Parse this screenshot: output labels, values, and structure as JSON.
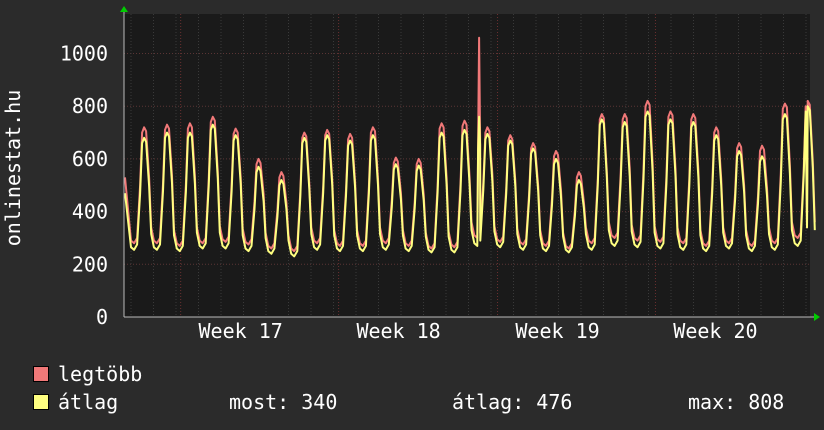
{
  "chart_data": {
    "type": "line",
    "ylabel": "onlinestat.hu",
    "ylim": [
      0,
      1150
    ],
    "yticks": [
      0,
      200,
      400,
      600,
      800,
      1000
    ],
    "xlim": [
      0,
      680
    ],
    "xticks": [
      {
        "label": "Week  17",
        "x": 115
      },
      {
        "label": "Week  18",
        "x": 272
      },
      {
        "label": "Week  19",
        "x": 430
      },
      {
        "label": "Week  20",
        "x": 587
      }
    ],
    "grid": true,
    "series": [
      {
        "name": "legtöbb",
        "color": "#f07878",
        "peaks": [
          720,
          730,
          735,
          760,
          715,
          600,
          550,
          700,
          710,
          695,
          720,
          605,
          600,
          735,
          745,
          720,
          690,
          660,
          630,
          550,
          770,
          770,
          820,
          780,
          770,
          720,
          660,
          650,
          810,
          820
        ],
        "troughs": [
          280,
          270,
          280,
          285,
          275,
          260,
          250,
          280,
          270,
          270,
          280,
          270,
          260,
          265,
          300,
          285,
          275,
          270,
          260,
          280,
          300,
          290,
          285,
          280,
          270,
          280,
          270,
          280,
          300
        ],
        "spike": {
          "x": 352,
          "y": 1060
        }
      },
      {
        "name": "átlag",
        "color": "#ffff80",
        "peaks": [
          680,
          700,
          700,
          730,
          690,
          570,
          520,
          680,
          690,
          670,
          690,
          580,
          575,
          700,
          710,
          695,
          670,
          640,
          600,
          520,
          750,
          740,
          780,
          750,
          740,
          690,
          630,
          610,
          770,
          800
        ],
        "troughs": [
          255,
          250,
          260,
          260,
          250,
          240,
          230,
          255,
          250,
          250,
          255,
          250,
          245,
          245,
          270,
          265,
          255,
          250,
          245,
          255,
          270,
          265,
          260,
          255,
          250,
          260,
          250,
          255,
          270
        ],
        "spike": {
          "x": 352,
          "y": 760
        }
      }
    ],
    "period": 22.75,
    "start": {
      "legtöbb": 530,
      "átlag": 470
    },
    "end": {
      "legtöbb": 340,
      "átlag": 340
    }
  },
  "legend": {
    "max_label": "legtöbb",
    "avg_label": "átlag",
    "now_text": "most: 340",
    "avg_text": "átlag: 476",
    "max_text": "max: 808",
    "max_color": "#f07878",
    "avg_color": "#ffff80"
  }
}
